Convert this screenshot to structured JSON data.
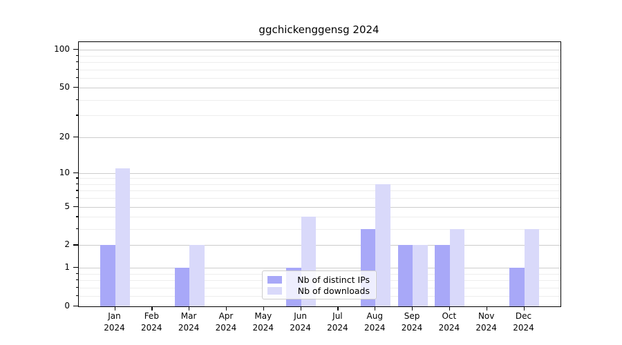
{
  "chart_data": {
    "type": "bar",
    "title": "ggchickenggensg 2024",
    "categories": [
      "Jan",
      "Feb",
      "Mar",
      "Apr",
      "May",
      "Jun",
      "Jul",
      "Aug",
      "Sep",
      "Oct",
      "Nov",
      "Dec"
    ],
    "x_tick_year": "2024",
    "series": [
      {
        "name": "Nb of distinct IPs",
        "color": "#a8a8f8",
        "values": [
          2,
          0,
          1,
          0,
          0,
          1,
          0,
          3,
          2,
          2,
          0,
          1
        ]
      },
      {
        "name": "Nb of downloads",
        "color": "#d9d9fa",
        "values": [
          11,
          0,
          2,
          0,
          0,
          4,
          0,
          8,
          2,
          3,
          0,
          3
        ]
      }
    ],
    "xlabel": "",
    "ylabel": "",
    "yscale": "log1p",
    "ylim": [
      0,
      115
    ],
    "yticks": [
      0,
      1,
      2,
      5,
      10,
      20,
      50,
      100
    ],
    "minor_yticks": [
      0.2,
      0.4,
      0.6,
      0.8,
      3,
      4,
      6,
      7,
      8,
      9,
      30,
      40,
      60,
      70,
      80,
      90
    ],
    "grid": "on",
    "legend_position": "lower center inside plot"
  },
  "colors": {
    "series_dark": "#a8a8f8",
    "series_light": "#d9d9fa",
    "grid_major": "#cccccc",
    "grid_minor": "#ededed"
  }
}
